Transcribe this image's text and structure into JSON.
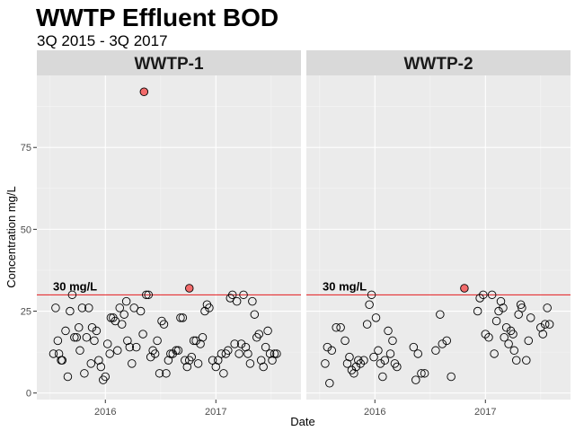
{
  "colors": {
    "panel_bg": "#EBEBEB",
    "strip_bg": "#D9D9D9",
    "grid_major": "#FFFFFF",
    "grid_minor": "#F5F5F5",
    "reference_line": "#E41A1C",
    "normal_point_fill": "none",
    "normal_point_stroke": "#000000",
    "exceed_point_fill": "#F26B6B"
  },
  "chart_data": {
    "type": "scatter",
    "title": "WWTP Effluent BOD",
    "subtitle": "3Q 2015 - 3Q 2017",
    "xlabel": "Date",
    "ylabel": "Concentration mg/L",
    "xlim": [
      2015.38,
      2017.77
    ],
    "ylim": [
      -2,
      97
    ],
    "x_ticks": [
      2016,
      2017
    ],
    "x_tick_labels": [
      "2016",
      "2017"
    ],
    "y_ticks": [
      0,
      25,
      50,
      75
    ],
    "y_tick_labels": [
      "0",
      "25",
      "50",
      "75"
    ],
    "grid": true,
    "legend": "none",
    "reference_line": {
      "y": 30,
      "label": "30 mg/L"
    },
    "panels": [
      {
        "name": "WWTP-1",
        "points": [
          [
            2015.53,
            12
          ],
          [
            2015.55,
            26
          ],
          [
            2015.57,
            16
          ],
          [
            2015.58,
            12
          ],
          [
            2015.6,
            10
          ],
          [
            2015.61,
            10
          ],
          [
            2015.64,
            19
          ],
          [
            2015.66,
            5
          ],
          [
            2015.68,
            25
          ],
          [
            2015.7,
            30
          ],
          [
            2015.72,
            17
          ],
          [
            2015.74,
            17
          ],
          [
            2015.76,
            20
          ],
          [
            2015.77,
            13
          ],
          [
            2015.79,
            26
          ],
          [
            2015.81,
            6
          ],
          [
            2015.83,
            17
          ],
          [
            2015.85,
            26
          ],
          [
            2015.87,
            9
          ],
          [
            2015.88,
            20
          ],
          [
            2015.9,
            16
          ],
          [
            2015.92,
            19
          ],
          [
            2015.94,
            10
          ],
          [
            2015.96,
            8
          ],
          [
            2015.98,
            4
          ],
          [
            2016.0,
            5
          ],
          [
            2016.02,
            15
          ],
          [
            2016.04,
            12
          ],
          [
            2016.05,
            23
          ],
          [
            2016.07,
            23
          ],
          [
            2016.09,
            22
          ],
          [
            2016.11,
            13
          ],
          [
            2016.13,
            26
          ],
          [
            2016.15,
            21
          ],
          [
            2016.17,
            24
          ],
          [
            2016.19,
            28
          ],
          [
            2016.2,
            16
          ],
          [
            2016.22,
            14
          ],
          [
            2016.24,
            9
          ],
          [
            2016.26,
            26
          ],
          [
            2016.28,
            14
          ],
          [
            2016.32,
            25
          ],
          [
            2016.34,
            18
          ],
          [
            2016.37,
            30
          ],
          [
            2016.39,
            30
          ],
          [
            2016.41,
            11
          ],
          [
            2016.43,
            13
          ],
          [
            2016.45,
            12
          ],
          [
            2016.47,
            16
          ],
          [
            2016.49,
            6
          ],
          [
            2016.51,
            22
          ],
          [
            2016.53,
            21
          ],
          [
            2016.55,
            6
          ],
          [
            2016.57,
            10
          ],
          [
            2016.59,
            12
          ],
          [
            2016.61,
            12
          ],
          [
            2016.64,
            13
          ],
          [
            2016.66,
            13
          ],
          [
            2016.68,
            23
          ],
          [
            2016.7,
            23
          ],
          [
            2016.72,
            10
          ],
          [
            2016.74,
            8
          ],
          [
            2016.76,
            10
          ],
          [
            2016.78,
            11
          ],
          [
            2016.8,
            16
          ],
          [
            2016.82,
            16
          ],
          [
            2016.84,
            9
          ],
          [
            2016.86,
            15
          ],
          [
            2016.88,
            17
          ],
          [
            2016.9,
            25
          ],
          [
            2016.92,
            27
          ],
          [
            2016.94,
            26
          ],
          [
            2016.97,
            10
          ],
          [
            2017.0,
            8
          ],
          [
            2017.02,
            10
          ],
          [
            2017.05,
            12
          ],
          [
            2017.07,
            6
          ],
          [
            2017.09,
            12
          ],
          [
            2017.11,
            13
          ],
          [
            2017.13,
            29
          ],
          [
            2017.15,
            30
          ],
          [
            2017.17,
            15
          ],
          [
            2017.19,
            28
          ],
          [
            2017.21,
            12
          ],
          [
            2017.23,
            15
          ],
          [
            2017.25,
            30
          ],
          [
            2017.27,
            14
          ],
          [
            2017.29,
            12
          ],
          [
            2017.31,
            9
          ],
          [
            2017.33,
            28
          ],
          [
            2017.35,
            24
          ],
          [
            2017.37,
            17
          ],
          [
            2017.39,
            18
          ],
          [
            2017.41,
            10
          ],
          [
            2017.43,
            8
          ],
          [
            2017.45,
            14
          ],
          [
            2017.47,
            19
          ],
          [
            2017.49,
            12
          ],
          [
            2017.51,
            10
          ],
          [
            2017.53,
            12
          ],
          [
            2017.55,
            12
          ]
        ],
        "exceedances": [
          [
            2016.35,
            92
          ],
          [
            2016.76,
            32
          ]
        ]
      },
      {
        "name": "WWTP-2",
        "points": [
          [
            2015.55,
            9
          ],
          [
            2015.57,
            14
          ],
          [
            2015.59,
            3
          ],
          [
            2015.61,
            13
          ],
          [
            2015.65,
            20
          ],
          [
            2015.69,
            20
          ],
          [
            2015.73,
            16
          ],
          [
            2015.75,
            9
          ],
          [
            2015.77,
            11
          ],
          [
            2015.79,
            7
          ],
          [
            2015.81,
            6
          ],
          [
            2015.83,
            8
          ],
          [
            2015.85,
            10
          ],
          [
            2015.87,
            9
          ],
          [
            2015.9,
            10
          ],
          [
            2015.93,
            21
          ],
          [
            2015.95,
            27
          ],
          [
            2015.97,
            30
          ],
          [
            2015.99,
            11
          ],
          [
            2016.01,
            23
          ],
          [
            2016.03,
            13
          ],
          [
            2016.05,
            9
          ],
          [
            2016.07,
            5
          ],
          [
            2016.09,
            10
          ],
          [
            2016.12,
            19
          ],
          [
            2016.14,
            12
          ],
          [
            2016.16,
            16
          ],
          [
            2016.18,
            9
          ],
          [
            2016.2,
            8
          ],
          [
            2016.35,
            14
          ],
          [
            2016.37,
            4
          ],
          [
            2016.39,
            12
          ],
          [
            2016.42,
            6
          ],
          [
            2016.45,
            6
          ],
          [
            2016.55,
            13
          ],
          [
            2016.59,
            24
          ],
          [
            2016.61,
            15
          ],
          [
            2016.65,
            16
          ],
          [
            2016.69,
            5
          ],
          [
            2016.93,
            25
          ],
          [
            2016.95,
            29
          ],
          [
            2016.98,
            30
          ],
          [
            2017.0,
            18
          ],
          [
            2017.03,
            17
          ],
          [
            2017.06,
            30
          ],
          [
            2017.08,
            12
          ],
          [
            2017.1,
            22
          ],
          [
            2017.12,
            25
          ],
          [
            2017.14,
            28
          ],
          [
            2017.16,
            26
          ],
          [
            2017.17,
            17
          ],
          [
            2017.19,
            20
          ],
          [
            2017.21,
            15
          ],
          [
            2017.23,
            19
          ],
          [
            2017.25,
            18
          ],
          [
            2017.26,
            13
          ],
          [
            2017.28,
            10
          ],
          [
            2017.3,
            24
          ],
          [
            2017.32,
            27
          ],
          [
            2017.33,
            26
          ],
          [
            2017.37,
            10
          ],
          [
            2017.39,
            16
          ],
          [
            2017.41,
            23
          ],
          [
            2017.5,
            20
          ],
          [
            2017.52,
            18
          ],
          [
            2017.54,
            21
          ],
          [
            2017.56,
            26
          ],
          [
            2017.58,
            21
          ]
        ],
        "exceedances": [
          [
            2016.81,
            32
          ]
        ]
      }
    ]
  }
}
